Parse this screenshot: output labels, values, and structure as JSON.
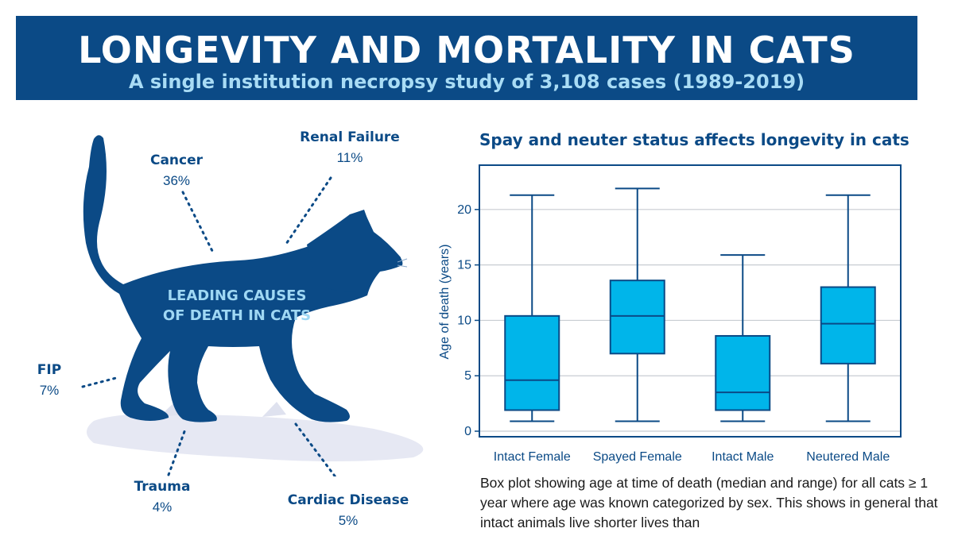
{
  "header": {
    "title": "LONGEVITY AND MORTALITY IN CATS",
    "subtitle": "A single institution necropsy study of 3,108 cases (1989-2019)"
  },
  "infographic": {
    "caption_line1": "LEADING CAUSES",
    "caption_line2": "OF DEATH IN CATS",
    "causes": [
      {
        "label": "Cancer",
        "percent": "36%"
      },
      {
        "label": "Renal Failure",
        "percent": "11%"
      },
      {
        "label": "FIP",
        "percent": "7%"
      },
      {
        "label": "Trauma",
        "percent": "4%"
      },
      {
        "label": "Cardiac Disease",
        "percent": "5%"
      }
    ]
  },
  "chart_data": {
    "type": "boxplot",
    "title": "Spay and neuter status affects longevity in cats",
    "ylabel": "Age of death (years)",
    "xlabel": "",
    "ylim": [
      -0.5,
      24
    ],
    "yticks": [
      0,
      5,
      10,
      15,
      20
    ],
    "grid": true,
    "categories": [
      "Intact Female",
      "Spayed Female",
      "Intact Male",
      "Neutered Male"
    ],
    "boxes": [
      {
        "min": 0.9,
        "q1": 1.9,
        "median": 4.6,
        "q3": 10.4,
        "max": 21.3
      },
      {
        "min": 0.9,
        "q1": 7.0,
        "median": 10.4,
        "q3": 13.6,
        "max": 21.9
      },
      {
        "min": 0.9,
        "q1": 1.9,
        "median": 3.5,
        "q3": 8.6,
        "max": 15.9
      },
      {
        "min": 0.9,
        "q1": 6.1,
        "median": 9.7,
        "q3": 13.0,
        "max": 21.3
      }
    ]
  },
  "description": "Box plot showing age at time of death (median and range) for all cats ≥ 1 year where age was known categorized by sex. This shows in general that intact animals live shorter lives than",
  "colors": {
    "navy": "#0b4a86",
    "box_fill": "#00b5ea",
    "caption_blue": "#9fd8f4",
    "grid": "#c8ccd2"
  }
}
